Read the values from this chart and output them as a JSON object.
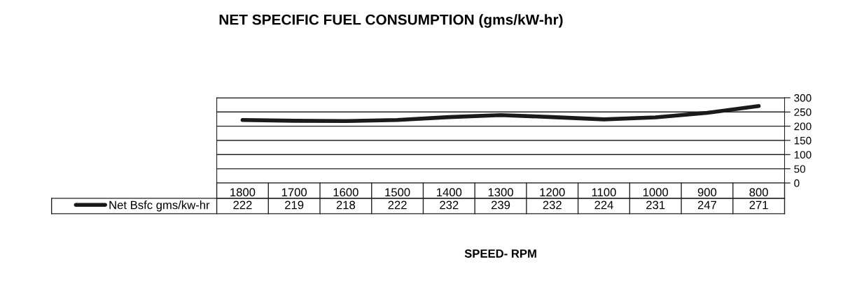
{
  "chart_data": {
    "type": "line",
    "title": "NET SPECIFIC FUEL CONSUMPTION (gms/kW-hr)",
    "xlabel": "SPEED- RPM",
    "categories": [
      "1800",
      "1700",
      "1600",
      "1500",
      "1400",
      "1300",
      "1200",
      "1100",
      "1000",
      "900",
      "800"
    ],
    "series": [
      {
        "name": "Net Bsfc gms/kw-hr",
        "color": "#1a1a1a",
        "values": [
          222,
          219,
          218,
          222,
          232,
          239,
          232,
          224,
          231,
          247,
          271
        ]
      }
    ],
    "ylim": [
      0,
      300
    ],
    "yticks": [
      0,
      50,
      100,
      150,
      200,
      250,
      300
    ],
    "grid": "y",
    "legend": "bottom left",
    "data_labels": true,
    "marker": "none",
    "line_style": "solid"
  }
}
